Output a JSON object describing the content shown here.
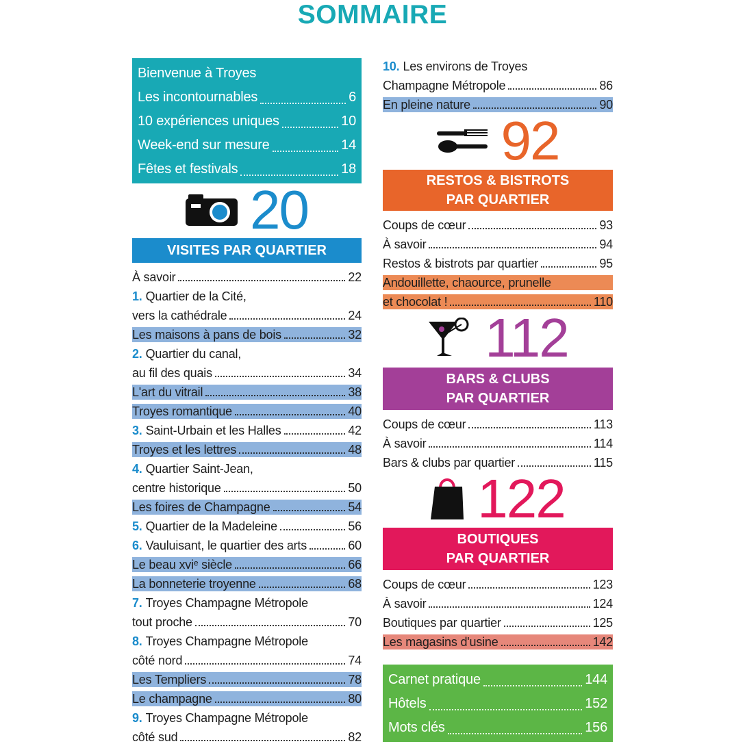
{
  "title": "SOMMAIRE",
  "intro": {
    "color": "#18a9b5",
    "items": [
      {
        "label": "Bienvenue à Troyes"
      },
      {
        "label": "Les incontournables",
        "page": 6
      },
      {
        "label": "10 expériences uniques",
        "page": 10
      },
      {
        "label": "Week-end sur mesure",
        "page": 14
      },
      {
        "label": "Fêtes et festivals",
        "page": 18
      }
    ]
  },
  "left": {
    "number": "20",
    "color": "#1b8ccc",
    "highlight_color": "#8fb3dd",
    "heading": [
      "VISITES PAR QUARTIER"
    ],
    "entries": [
      {
        "lines": [
          "À savoir"
        ],
        "page": 22
      },
      {
        "num": "1.",
        "lines": [
          "Quartier de la Cité,",
          "vers la cathédrale"
        ],
        "page": 24
      },
      {
        "lines": [
          "Les maisons à pans de bois"
        ],
        "page": 32,
        "highlight": true
      },
      {
        "num": "2.",
        "lines": [
          "Quartier du canal,",
          "au fil des quais"
        ],
        "page": 34
      },
      {
        "lines": [
          "L'art du vitrail"
        ],
        "page": 38,
        "highlight": true
      },
      {
        "lines": [
          "Troyes romantique"
        ],
        "page": 40,
        "highlight": true
      },
      {
        "num": "3.",
        "lines": [
          "Saint-Urbain et les Halles"
        ],
        "page": 42
      },
      {
        "lines": [
          "Troyes et les lettres"
        ],
        "page": 48,
        "highlight": true
      },
      {
        "num": "4.",
        "lines": [
          "Quartier Saint-Jean,",
          "centre historique"
        ],
        "page": 50
      },
      {
        "lines": [
          "Les foires de Champagne"
        ],
        "page": 54,
        "highlight": true
      },
      {
        "num": "5.",
        "lines": [
          "Quartier de la Madeleine"
        ],
        "page": 56
      },
      {
        "num": "6.",
        "lines": [
          "Vauluisant, le quartier des arts"
        ],
        "page": 60
      },
      {
        "lines": [
          "Le beau xviᵉ siècle"
        ],
        "page": 66,
        "highlight": true
      },
      {
        "lines": [
          "La bonneterie troyenne"
        ],
        "page": 68,
        "highlight": true
      },
      {
        "num": "7.",
        "lines": [
          "Troyes Champagne Métropole",
          "tout proche"
        ],
        "page": 70
      },
      {
        "num": "8.",
        "lines": [
          "Troyes Champagne Métropole",
          "côté nord"
        ],
        "page": 74
      },
      {
        "lines": [
          "Les Templiers"
        ],
        "page": 78,
        "highlight": true
      },
      {
        "lines": [
          "Le champagne"
        ],
        "page": 80,
        "highlight": true
      },
      {
        "num": "9.",
        "lines": [
          "Troyes Champagne Métropole",
          "côté sud"
        ],
        "page": 82
      }
    ]
  },
  "right": {
    "num_color": "#1b8ccc",
    "highlight_color": "#8fb3dd",
    "top_entries": [
      {
        "num": "10.",
        "lines": [
          "Les environs de Troyes",
          "Champagne Métropole"
        ],
        "page": 86
      },
      {
        "lines": [
          "En pleine nature"
        ],
        "page": 90,
        "highlight": true
      }
    ],
    "sections": [
      {
        "number": "92",
        "color": "#e8652a",
        "highlight_color": "#ec8a55",
        "heading": [
          "RESTOS & BISTROTS",
          "PAR QUARTIER"
        ],
        "entries": [
          {
            "lines": [
              "Coups de cœur"
            ],
            "page": 93
          },
          {
            "lines": [
              "À savoir"
            ],
            "page": 94
          },
          {
            "lines": [
              "Restos & bistrots par quartier"
            ],
            "page": 95
          },
          {
            "lines": [
              "Andouillette, chaource, prunelle",
              "et chocolat !"
            ],
            "page": 110,
            "highlight": true
          }
        ]
      },
      {
        "number": "112",
        "color": "#a33f98",
        "highlight_color": "#c77fbe",
        "heading": [
          "BARS & CLUBS",
          "PAR QUARTIER"
        ],
        "entries": [
          {
            "lines": [
              "Coups de cœur"
            ],
            "page": 113
          },
          {
            "lines": [
              "À savoir"
            ],
            "page": 114
          },
          {
            "lines": [
              "Bars & clubs par quartier"
            ],
            "page": 115
          }
        ]
      },
      {
        "number": "122",
        "color": "#e2185b",
        "highlight_color": "#e6877a",
        "heading": [
          "BOUTIQUES",
          "PAR QUARTIER"
        ],
        "entries": [
          {
            "lines": [
              "Coups de cœur"
            ],
            "page": 123
          },
          {
            "lines": [
              "À savoir"
            ],
            "page": 124
          },
          {
            "lines": [
              "Boutiques par quartier"
            ],
            "page": 125
          },
          {
            "lines": [
              "Les magasins d'usine"
            ],
            "page": 142,
            "highlight": true
          }
        ]
      }
    ]
  },
  "outro": {
    "color": "#5cb646",
    "items": [
      {
        "label": "Carnet pratique",
        "page": 144
      },
      {
        "label": "Hôtels",
        "page": 152
      },
      {
        "label": "Mots clés",
        "page": 156
      }
    ]
  }
}
